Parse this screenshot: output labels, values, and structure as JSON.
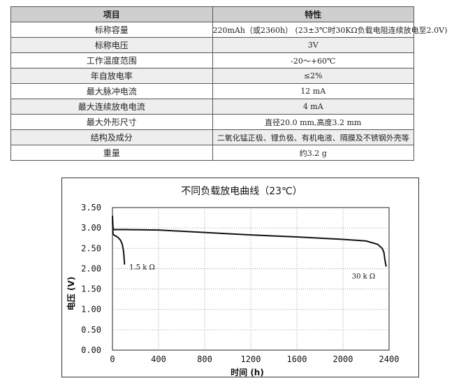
{
  "table": {
    "headers": [
      "项目",
      "特性"
    ],
    "rows": [
      [
        "标称容量",
        "220mAh（或2360h）  (23±3℃时30KΩ负载电阻连续放电至2.0V)"
      ],
      [
        "标称电压",
        "3V"
      ],
      [
        "工作温度范围",
        "-20～+60℃"
      ],
      [
        "年自放电率",
        "≤2%"
      ],
      [
        "最大脉冲电流",
        "12 mA"
      ],
      [
        "最大连续放电电流",
        "4  mA"
      ],
      [
        "最大外形尺寸",
        "直径20.0 mm,高度3.2 mm"
      ],
      [
        "结构及成分",
        "二氧化锰正极、锂负极、有机电液、隔膜及不锈钢外壳等"
      ],
      [
        "重量",
        "约3.2 g"
      ]
    ]
  },
  "chart_data": {
    "type": "line",
    "title": "不同负载放电曲线（23℃）",
    "xlabel": "时间 (h)",
    "ylabel": "电压 (V)",
    "xlim": [
      0,
      2400
    ],
    "ylim": [
      0,
      3.5
    ],
    "xticks": [
      "0",
      "400",
      "800",
      "1200",
      "1600",
      "2000",
      "2400"
    ],
    "yticks": [
      "0.00",
      "0.50",
      "1.00",
      "1.50",
      "2.00",
      "2.50",
      "3.00",
      "3.50"
    ],
    "grid": true,
    "series": [
      {
        "name": "1.5 k Ω",
        "x": [
          0,
          5,
          15,
          30,
          50,
          70,
          85,
          95,
          100,
          105
        ],
        "y": [
          3.2,
          2.85,
          2.82,
          2.8,
          2.76,
          2.7,
          2.6,
          2.45,
          2.3,
          2.1
        ]
      },
      {
        "name": "30 k Ω",
        "x": [
          0,
          3,
          6,
          12,
          20,
          100,
          400,
          800,
          1200,
          1600,
          2000,
          2200,
          2300,
          2320,
          2340,
          2355,
          2365,
          2375
        ],
        "y": [
          3.3,
          3.1,
          2.98,
          2.96,
          2.96,
          2.96,
          2.95,
          2.89,
          2.83,
          2.78,
          2.72,
          2.68,
          2.6,
          2.55,
          2.5,
          2.4,
          2.2,
          2.05
        ]
      }
    ],
    "annotations": [
      "1.5 k Ω",
      "30 k Ω"
    ]
  }
}
